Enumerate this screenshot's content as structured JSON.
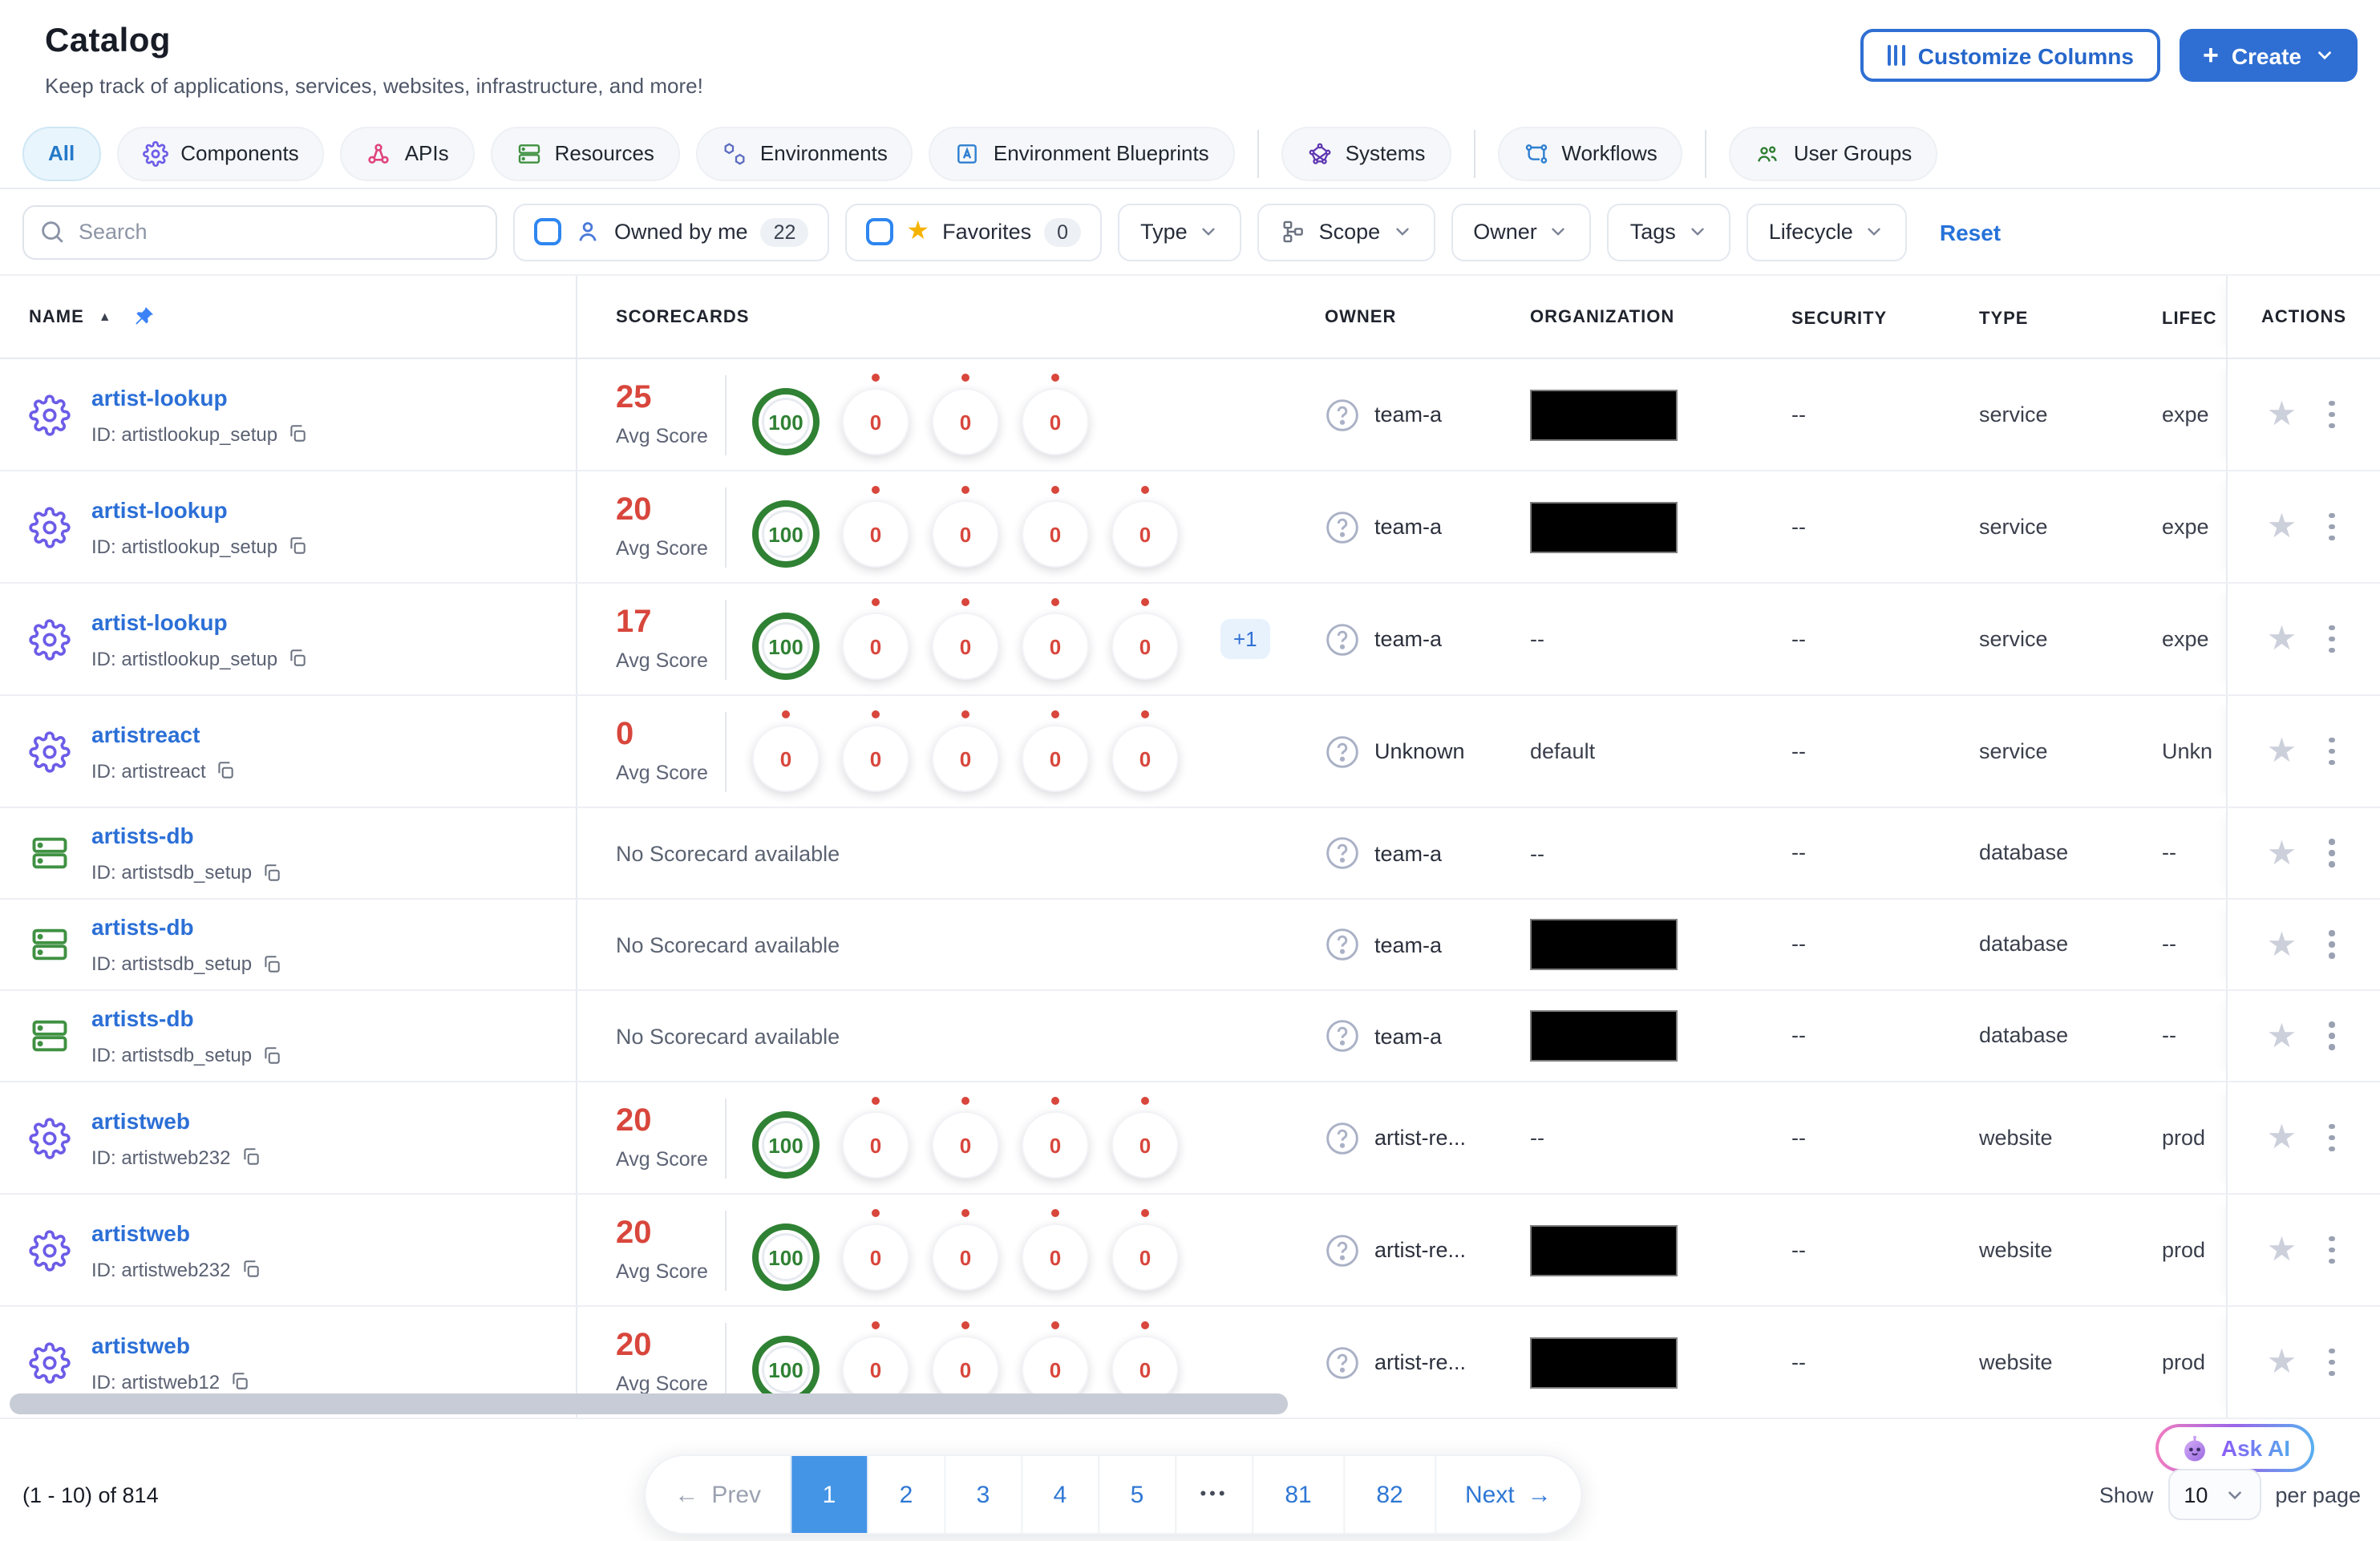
{
  "page": {
    "title": "Catalog",
    "subtitle": "Keep track of applications, services, websites, infrastructure, and more!"
  },
  "toolbar": {
    "customize_label": "Customize Columns",
    "create_label": "Create"
  },
  "tabs": [
    {
      "label": "All",
      "icon": null,
      "active": true,
      "divider_after": false
    },
    {
      "label": "Components",
      "icon": "components-gear-icon",
      "active": false,
      "divider_after": false
    },
    {
      "label": "APIs",
      "icon": "apis-icon",
      "active": false,
      "divider_after": false
    },
    {
      "label": "Resources",
      "icon": "resources-icon",
      "active": false,
      "divider_after": false
    },
    {
      "label": "Environments",
      "icon": "environments-icon",
      "active": false,
      "divider_after": false
    },
    {
      "label": "Environment Blueprints",
      "icon": "blueprints-icon",
      "active": false,
      "divider_after": true
    },
    {
      "label": "Systems",
      "icon": "systems-icon",
      "active": false,
      "divider_after": true
    },
    {
      "label": "Workflows",
      "icon": "workflows-icon",
      "active": false,
      "divider_after": true
    },
    {
      "label": "User Groups",
      "icon": "user-groups-icon",
      "active": false,
      "divider_after": false
    }
  ],
  "filters": {
    "search_placeholder": "Search",
    "owned_by_me_label": "Owned by me",
    "owned_by_me_count": "22",
    "favorites_label": "Favorites",
    "favorites_count": "0",
    "dropdowns": [
      {
        "label": "Type",
        "icon": null
      },
      {
        "label": "Scope",
        "icon": "scope-tree-icon"
      },
      {
        "label": "Owner",
        "icon": null
      },
      {
        "label": "Tags",
        "icon": null
      },
      {
        "label": "Lifecycle",
        "icon": null
      }
    ],
    "reset_label": "Reset"
  },
  "table": {
    "columns": [
      "NAME",
      "SCORECARDS",
      "OWNER",
      "ORGANIZATION",
      "SECURITY",
      "TYPE",
      "LIFEC",
      "ACTIONS"
    ],
    "avg_score_label": "Avg Score",
    "no_scorecard_text": "No Scorecard available",
    "rows": [
      {
        "name": "artist-lookup",
        "id_label": "ID: artistlookup_setup",
        "entity_icon": "service-gear-icon",
        "avg_score": "25",
        "badges": [
          "100",
          "0",
          "0",
          "0"
        ],
        "extra_badge": null,
        "owner": "team-a",
        "organization": {
          "redacted": true,
          "value": null
        },
        "security": "--",
        "type": "service",
        "lifecycle": "expe"
      },
      {
        "name": "artist-lookup",
        "id_label": "ID: artistlookup_setup",
        "entity_icon": "service-gear-icon",
        "avg_score": "20",
        "badges": [
          "100",
          "0",
          "0",
          "0",
          "0"
        ],
        "extra_badge": null,
        "owner": "team-a",
        "organization": {
          "redacted": true,
          "value": null
        },
        "security": "--",
        "type": "service",
        "lifecycle": "expe"
      },
      {
        "name": "artist-lookup",
        "id_label": "ID: artistlookup_setup",
        "entity_icon": "service-gear-icon",
        "avg_score": "17",
        "badges": [
          "100",
          "0",
          "0",
          "0",
          "0"
        ],
        "extra_badge": "+1",
        "owner": "team-a",
        "organization": {
          "redacted": false,
          "value": "--"
        },
        "security": "--",
        "type": "service",
        "lifecycle": "expe"
      },
      {
        "name": "artistreact",
        "id_label": "ID: artistreact",
        "entity_icon": "service-gear-icon",
        "avg_score": "0",
        "badges": [
          "0",
          "0",
          "0",
          "0",
          "0"
        ],
        "extra_badge": null,
        "owner": "Unknown",
        "organization": {
          "redacted": false,
          "value": "default"
        },
        "security": "--",
        "type": "service",
        "lifecycle": "Unkn"
      },
      {
        "name": "artists-db",
        "id_label": "ID: artistsdb_setup",
        "entity_icon": "database-icon",
        "avg_score": null,
        "badges": null,
        "extra_badge": null,
        "owner": "team-a",
        "organization": {
          "redacted": false,
          "value": "--"
        },
        "security": "--",
        "type": "database",
        "lifecycle": "--"
      },
      {
        "name": "artists-db",
        "id_label": "ID: artistsdb_setup",
        "entity_icon": "database-icon",
        "avg_score": null,
        "badges": null,
        "extra_badge": null,
        "owner": "team-a",
        "organization": {
          "redacted": true,
          "value": null
        },
        "security": "--",
        "type": "database",
        "lifecycle": "--"
      },
      {
        "name": "artists-db",
        "id_label": "ID: artistsdb_setup",
        "entity_icon": "database-icon",
        "avg_score": null,
        "badges": null,
        "extra_badge": null,
        "owner": "team-a",
        "organization": {
          "redacted": true,
          "value": null
        },
        "security": "--",
        "type": "database",
        "lifecycle": "--"
      },
      {
        "name": "artistweb",
        "id_label": "ID: artistweb232",
        "entity_icon": "service-gear-icon",
        "avg_score": "20",
        "badges": [
          "100",
          "0",
          "0",
          "0",
          "0"
        ],
        "extra_badge": null,
        "owner": "artist-re...",
        "organization": {
          "redacted": false,
          "value": "--"
        },
        "security": "--",
        "type": "website",
        "lifecycle": "prod"
      },
      {
        "name": "artistweb",
        "id_label": "ID: artistweb232",
        "entity_icon": "service-gear-icon",
        "avg_score": "20",
        "badges": [
          "100",
          "0",
          "0",
          "0",
          "0"
        ],
        "extra_badge": null,
        "owner": "artist-re...",
        "organization": {
          "redacted": true,
          "value": null
        },
        "security": "--",
        "type": "website",
        "lifecycle": "prod"
      },
      {
        "name": "artistweb",
        "id_label": "ID: artistweb12",
        "entity_icon": "service-gear-icon",
        "avg_score": "20",
        "badges": [
          "100",
          "0",
          "0",
          "0",
          "0"
        ],
        "extra_badge": null,
        "owner": "artist-re...",
        "organization": {
          "redacted": true,
          "value": null
        },
        "security": "--",
        "type": "website",
        "lifecycle": "prod"
      }
    ]
  },
  "pagination": {
    "prev_label": "Prev",
    "next_label": "Next",
    "pages": [
      "1",
      "2",
      "3",
      "4",
      "5",
      "•••",
      "81",
      "82"
    ],
    "active_page": "1"
  },
  "footer": {
    "range_text": "(1 - 10) of 814",
    "show_label": "Show",
    "page_size": "10",
    "per_page_label": "per page",
    "ask_ai_label": "Ask AI"
  },
  "colors": {
    "accent_blue": "#2f6fd3",
    "active_page_blue": "#4595e7",
    "score_red": "#d8463c",
    "score_green": "#2f8133",
    "favorite_gold": "#f5b301"
  }
}
